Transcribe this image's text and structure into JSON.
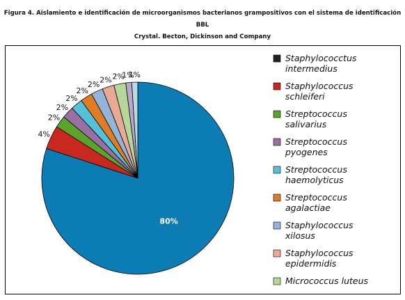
{
  "caption": {
    "line1": "Figura 4. Aislamiento e identificación de microorganismos bacterianos grampositivos con el sistema de identificación BBL",
    "line2": "Crystal. Becton, Dickinson and Company"
  },
  "chart_data": {
    "type": "pie",
    "title": "",
    "slices": [
      {
        "label": "Staphylococctus intermedius",
        "value": 80,
        "display": "80%",
        "color": "#0b7db4"
      },
      {
        "label": "Staphylococcus schleiferi",
        "value": 4,
        "display": "4%",
        "color": "#c8281e"
      },
      {
        "label": "Streptococcus salivarius",
        "value": 2,
        "display": "2%",
        "color": "#5ba42c"
      },
      {
        "label": "Streptococcus pyogenes",
        "value": 2,
        "display": "2%",
        "color": "#9a6fa4"
      },
      {
        "label": "Streptococcus haemolyticus",
        "value": 2,
        "display": "2%",
        "color": "#55c1d9"
      },
      {
        "label": "Streptococcus agalactiae",
        "value": 2,
        "display": "2%",
        "color": "#e07d24"
      },
      {
        "label": "Staphylococcus xilosus",
        "value": 2,
        "display": "2%",
        "color": "#93b6d8"
      },
      {
        "label": "Staphylococcus epidermidis",
        "value": 2,
        "display": "2%",
        "color": "#e8aa95"
      },
      {
        "label": "Micrococcus luteus",
        "value": 2,
        "display": "2%",
        "color": "#b5d79c"
      },
      {
        "label": "",
        "value": 1,
        "display": "1%",
        "color": "#b9a8c9"
      },
      {
        "label": "",
        "value": 1,
        "display": "1%",
        "color": "#b9dbe8"
      }
    ],
    "legend": {
      "position": "right",
      "entries": [
        {
          "line1": "Staphylococctus",
          "line2": "intermedius",
          "color": "#222222"
        },
        {
          "line1": "Staphylococcus",
          "line2": "schleiferi",
          "color": "#c8281e"
        },
        {
          "line1": "Streptococcus",
          "line2": "salivarius",
          "color": "#5ba42c"
        },
        {
          "line1": "Streptococcus",
          "line2": "pyogenes",
          "color": "#9a6fa4"
        },
        {
          "line1": "Streptococcus",
          "line2": "haemolyticus",
          "color": "#55c1d9"
        },
        {
          "line1": "Streptococcus",
          "line2": "agalactiae",
          "color": "#e07d24"
        },
        {
          "line1": "Staphylococcus",
          "line2": "xilosus",
          "color": "#93b6d8"
        },
        {
          "line1": "Staphylococcus",
          "line2": "epidermidis",
          "color": "#e8aa95"
        },
        {
          "line1": "Micrococcus luteus",
          "line2": "",
          "color": "#b5d79c"
        }
      ]
    }
  }
}
